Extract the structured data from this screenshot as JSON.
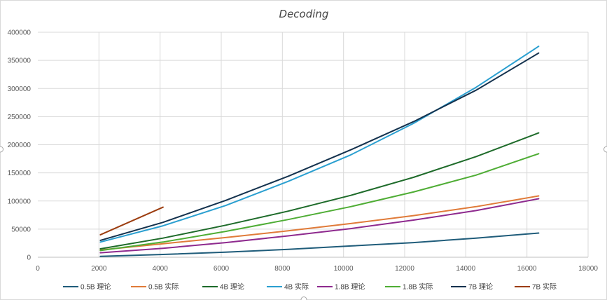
{
  "chart_data": {
    "type": "line",
    "title": "Decoding",
    "xlabel": "",
    "ylabel": "",
    "xlim": [
      0,
      18000
    ],
    "ylim": [
      0,
      400000
    ],
    "x_ticks": [
      "0",
      "2000",
      "4000",
      "6000",
      "8000",
      "10000",
      "12000",
      "14000",
      "16000",
      "18000"
    ],
    "y_ticks": [
      "0",
      "50000",
      "100000",
      "150000",
      "200000",
      "250000",
      "300000",
      "350000",
      "400000"
    ],
    "grid": true,
    "legend_position": "bottom",
    "series": [
      {
        "name": "0.5B 理论",
        "color": "#1f5c7a",
        "x": [
          2048,
          4096,
          6144,
          8192,
          10240,
          12288,
          14336,
          16384
        ],
        "y": [
          1500,
          5000,
          9000,
          14000,
          20000,
          26000,
          34000,
          43000
        ]
      },
      {
        "name": "0.5B 实际",
        "color": "#e07b39",
        "x": [
          2048,
          4096,
          6144,
          8192,
          10240,
          12288,
          14336,
          16384
        ],
        "y": [
          13000,
          24000,
          35000,
          47000,
          60000,
          74000,
          90000,
          109000
        ]
      },
      {
        "name": "4B 理论",
        "color": "#1e6b2a",
        "x": [
          2048,
          4096,
          6144,
          8192,
          10240,
          12288,
          14336,
          16384
        ],
        "y": [
          15000,
          34000,
          57000,
          82000,
          110000,
          142000,
          179000,
          221000
        ]
      },
      {
        "name": "4B 实际",
        "color": "#2a9fd0",
        "x": [
          2048,
          4096,
          6144,
          8192,
          10240,
          12288,
          14336,
          16384
        ],
        "y": [
          27000,
          56000,
          92000,
          135000,
          182000,
          238000,
          302000,
          375000
        ]
      },
      {
        "name": "1.8B 理论",
        "color": "#8e2a8e",
        "x": [
          2048,
          4096,
          6144,
          8192,
          10240,
          12288,
          14336,
          16384
        ],
        "y": [
          8000,
          16000,
          26000,
          38000,
          51000,
          66000,
          83000,
          104000
        ]
      },
      {
        "name": "1.8B 实际",
        "color": "#4fad35",
        "x": [
          2048,
          4096,
          6144,
          8192,
          10240,
          12288,
          14336,
          16384
        ],
        "y": [
          12000,
          27000,
          46000,
          67000,
          90000,
          116000,
          146000,
          184000
        ]
      },
      {
        "name": "7B 理论",
        "color": "#14324e",
        "x": [
          2048,
          4096,
          6144,
          8192,
          10240,
          12288,
          14336,
          16384
        ],
        "y": [
          30000,
          62000,
          101000,
          144000,
          191000,
          241000,
          297000,
          363000
        ]
      },
      {
        "name": "7B 实际",
        "color": "#9c3d0f",
        "x": [
          2048,
          4096
        ],
        "y": [
          40000,
          89000
        ]
      }
    ]
  }
}
